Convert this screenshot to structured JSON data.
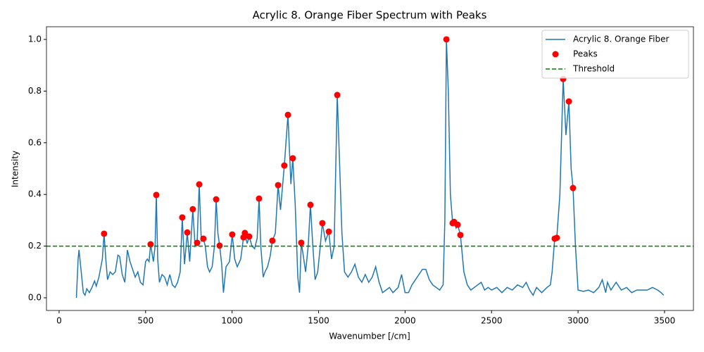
{
  "chart_data": {
    "type": "line",
    "title": "Acrylic 8. Orange Fiber Spectrum with Peaks",
    "xlabel": "Wavenumber [/cm]",
    "ylabel": "Intensity",
    "xlim": [
      -73,
      3667
    ],
    "ylim": [
      -0.049,
      1.049
    ],
    "xticks": [
      0,
      500,
      1000,
      1500,
      2000,
      2500,
      3000,
      3500
    ],
    "yticks": [
      {
        "value": 0,
        "label": "0.0"
      },
      0.2,
      0.4,
      0.6,
      0.8,
      {
        "value": 1,
        "label": "1.0"
      }
    ],
    "legend": "upper right",
    "series": [
      {
        "name": "Acrylic 8. Orange Fiber",
        "type": "line",
        "color": "#1f77b4",
        "x": [
          100,
          110,
          115,
          125,
          140,
          150,
          160,
          175,
          190,
          205,
          215,
          230,
          250,
          260,
          270,
          280,
          295,
          310,
          325,
          340,
          350,
          365,
          380,
          395,
          410,
          425,
          440,
          455,
          470,
          485,
          500,
          510,
          520,
          529,
          545,
          555,
          562,
          570,
          580,
          595,
          610,
          625,
          640,
          655,
          670,
          685,
          700,
          712,
          725,
          741,
          755,
          773,
          786,
          798,
          810,
          822,
          834,
          845,
          858,
          870,
          885,
          898,
          908,
          918,
          928,
          940,
          950,
          965,
          985,
          1001,
          1015,
          1030,
          1050,
          1066,
          1074,
          1087,
          1099,
          1115,
          1130,
          1145,
          1156,
          1166,
          1180,
          1190,
          1205,
          1220,
          1233,
          1250,
          1266,
          1280,
          1302,
          1323,
          1340,
          1351,
          1365,
          1380,
          1390,
          1400,
          1410,
          1425,
          1440,
          1453,
          1465,
          1480,
          1495,
          1510,
          1522,
          1540,
          1559,
          1575,
          1590,
          1608,
          1620,
          1635,
          1650,
          1670,
          1690,
          1710,
          1730,
          1750,
          1770,
          1790,
          1810,
          1830,
          1850,
          1870,
          1890,
          1910,
          1930,
          1960,
          1980,
          2000,
          2020,
          2040,
          2060,
          2080,
          2100,
          2120,
          2140,
          2160,
          2180,
          2200,
          2220,
          2230,
          2239,
          2250,
          2262,
          2275,
          2283,
          2295,
          2304,
          2320,
          2340,
          2360,
          2380,
          2400,
          2420,
          2440,
          2460,
          2480,
          2500,
          2530,
          2560,
          2590,
          2620,
          2650,
          2680,
          2700,
          2720,
          2740,
          2760,
          2790,
          2820,
          2840,
          2850,
          2865,
          2877,
          2895,
          2914,
          2930,
          2947,
          2960,
          2971,
          2985,
          3000,
          3030,
          3060,
          3090,
          3120,
          3140,
          3160,
          3170,
          3190,
          3220,
          3250,
          3280,
          3310,
          3340,
          3370,
          3400,
          3430,
          3460,
          3480,
          3495
        ],
        "values": [
          0.0,
          0.15,
          0.185,
          0.12,
          0.02,
          0.01,
          0.035,
          0.02,
          0.04,
          0.065,
          0.045,
          0.08,
          0.15,
          0.248,
          0.15,
          0.07,
          0.1,
          0.09,
          0.1,
          0.165,
          0.16,
          0.09,
          0.06,
          0.185,
          0.14,
          0.11,
          0.08,
          0.1,
          0.06,
          0.05,
          0.14,
          0.15,
          0.14,
          0.207,
          0.14,
          0.2,
          0.398,
          0.15,
          0.06,
          0.09,
          0.08,
          0.05,
          0.09,
          0.05,
          0.04,
          0.06,
          0.1,
          0.311,
          0.13,
          0.253,
          0.14,
          0.343,
          0.2,
          0.213,
          0.439,
          0.22,
          0.229,
          0.2,
          0.12,
          0.1,
          0.12,
          0.2,
          0.381,
          0.25,
          0.202,
          0.13,
          0.02,
          0.12,
          0.14,
          0.245,
          0.15,
          0.12,
          0.15,
          0.234,
          0.251,
          0.21,
          0.237,
          0.2,
          0.19,
          0.23,
          0.384,
          0.2,
          0.08,
          0.1,
          0.12,
          0.16,
          0.221,
          0.25,
          0.436,
          0.34,
          0.512,
          0.708,
          0.44,
          0.54,
          0.36,
          0.08,
          0.02,
          0.213,
          0.17,
          0.1,
          0.2,
          0.36,
          0.22,
          0.07,
          0.1,
          0.2,
          0.289,
          0.22,
          0.256,
          0.15,
          0.2,
          0.785,
          0.55,
          0.25,
          0.1,
          0.08,
          0.1,
          0.13,
          0.08,
          0.06,
          0.09,
          0.06,
          0.08,
          0.12,
          0.06,
          0.02,
          0.03,
          0.04,
          0.02,
          0.04,
          0.09,
          0.02,
          0.02,
          0.05,
          0.07,
          0.09,
          0.11,
          0.11,
          0.07,
          0.05,
          0.04,
          0.03,
          0.05,
          0.3,
          1.0,
          0.8,
          0.4,
          0.289,
          0.294,
          0.27,
          0.283,
          0.243,
          0.1,
          0.05,
          0.03,
          0.04,
          0.05,
          0.06,
          0.03,
          0.04,
          0.03,
          0.04,
          0.02,
          0.04,
          0.03,
          0.05,
          0.04,
          0.06,
          0.03,
          0.01,
          0.04,
          0.02,
          0.04,
          0.05,
          0.1,
          0.229,
          0.232,
          0.4,
          0.847,
          0.63,
          0.76,
          0.5,
          0.425,
          0.2,
          0.03,
          0.025,
          0.03,
          0.02,
          0.04,
          0.07,
          0.02,
          0.06,
          0.03,
          0.06,
          0.03,
          0.04,
          0.02,
          0.03,
          0.03,
          0.03,
          0.04,
          0.03,
          0.02,
          0.01
        ]
      },
      {
        "name": "Peaks",
        "type": "scatter",
        "color": "#ff0000",
        "x": [
          260,
          529,
          562,
          712,
          741,
          773,
          798,
          810,
          834,
          908,
          928,
          1001,
          1066,
          1074,
          1099,
          1156,
          1233,
          1266,
          1302,
          1323,
          1351,
          1400,
          1453,
          1522,
          1559,
          1608,
          2239,
          2275,
          2283,
          2304,
          2320,
          2865,
          2877,
          2914,
          2947,
          2971
        ],
        "values": [
          0.248,
          0.207,
          0.398,
          0.311,
          0.253,
          0.343,
          0.213,
          0.439,
          0.229,
          0.381,
          0.202,
          0.245,
          0.234,
          0.251,
          0.237,
          0.384,
          0.221,
          0.436,
          0.512,
          0.708,
          0.54,
          0.213,
          0.36,
          0.289,
          0.256,
          0.785,
          1.0,
          0.289,
          0.294,
          0.283,
          0.243,
          0.229,
          0.232,
          0.847,
          0.76,
          0.425
        ]
      },
      {
        "name": "Threshold",
        "type": "hline",
        "color": "#008000",
        "value": 0.2
      }
    ]
  }
}
